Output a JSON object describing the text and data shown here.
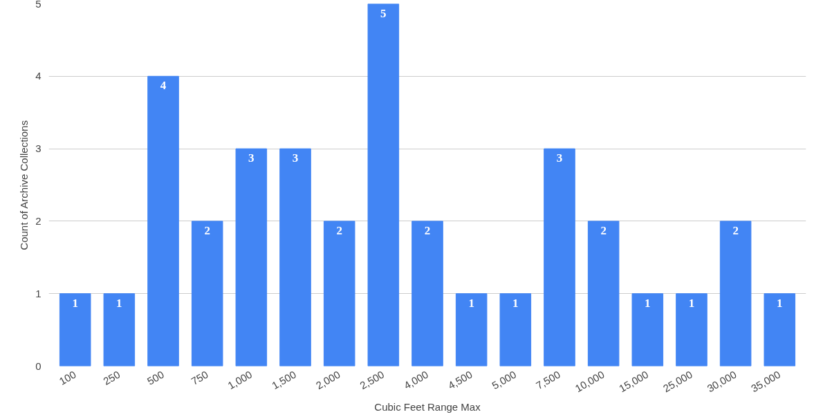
{
  "chart_data": {
    "type": "bar",
    "xlabel": "Cubic Feet Range Max",
    "ylabel": "Count of Archive Collections",
    "categories": [
      "100",
      "250",
      "500",
      "750",
      "1,000",
      "1,500",
      "2,000",
      "2,500",
      "4,000",
      "4,500",
      "5,000",
      "7,500",
      "10,000",
      "15,000",
      "25,000",
      "30,000",
      "35,000"
    ],
    "values": [
      1,
      1,
      4,
      2,
      3,
      3,
      2,
      5,
      2,
      1,
      1,
      3,
      2,
      1,
      1,
      2,
      1
    ],
    "color": "#4285f4",
    "ylim": [
      0,
      5
    ],
    "yticks": [
      0,
      1,
      2,
      3,
      4,
      5
    ],
    "grid": "y",
    "data_labels": true
  }
}
